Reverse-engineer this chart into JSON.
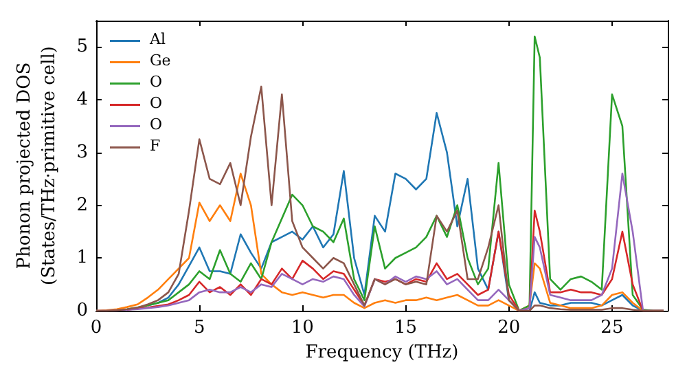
{
  "chart_data": {
    "type": "line",
    "xlabel": "Frequency (THz)",
    "ylabel": "Phonon projected DOS\n(States/THz·primitive cell)",
    "x": [
      0,
      0.5,
      1,
      1.5,
      2,
      2.5,
      3,
      3.5,
      4,
      4.5,
      5,
      5.5,
      6,
      6.5,
      7,
      7.5,
      8,
      8.5,
      9,
      9.5,
      10,
      10.5,
      11,
      11.5,
      12,
      12.5,
      13,
      13.5,
      14,
      14.5,
      15,
      15.5,
      16,
      16.5,
      17,
      17.5,
      18,
      18.5,
      19,
      19.5,
      20,
      20.5,
      21,
      21.25,
      21.5,
      22,
      22.5,
      23,
      23.5,
      24,
      24.5,
      25,
      25.5,
      26,
      26.5,
      27,
      27.5
    ],
    "series": [
      {
        "name": "Al",
        "color": "#1f77b4",
        "values": [
          null,
          null,
          null,
          null,
          null,
          0.1,
          0.15,
          0.25,
          0.5,
          0.85,
          1.2,
          0.75,
          0.75,
          0.7,
          1.45,
          1.1,
          0.8,
          1.3,
          1.4,
          1.5,
          1.35,
          1.6,
          1.2,
          1.45,
          2.65,
          1.0,
          0.3,
          1.8,
          1.5,
          2.6,
          2.5,
          2.3,
          2.5,
          3.75,
          3.0,
          1.6,
          2.5,
          0.8,
          0.4,
          1.5,
          0.2,
          0,
          0,
          0.35,
          0.15,
          0.1,
          0.1,
          0.15,
          0.15,
          0.15,
          0.1,
          0.2,
          0.3,
          0.1,
          0,
          0,
          0
        ]
      },
      {
        "name": "Ge",
        "color": "#ff7f0e",
        "values": [
          0,
          0.01,
          0.03,
          0.07,
          0.12,
          0.25,
          0.4,
          0.6,
          0.8,
          1.0,
          2.05,
          1.7,
          2.0,
          1.7,
          2.6,
          2.0,
          0.7,
          0.5,
          0.35,
          0.3,
          0.35,
          0.3,
          0.25,
          0.3,
          0.3,
          0.15,
          0.05,
          0.15,
          0.2,
          0.15,
          0.2,
          0.2,
          0.25,
          0.2,
          0.25,
          0.3,
          0.2,
          0.1,
          0.1,
          0.2,
          0.1,
          0,
          0.1,
          0.9,
          0.8,
          0.15,
          0.1,
          0.05,
          0.05,
          0.05,
          0.1,
          0.3,
          0.35,
          0.15,
          0,
          0,
          0
        ]
      },
      {
        "name": "O",
        "color": "#2ca02c",
        "values": [
          null,
          null,
          null,
          0.03,
          0.06,
          0.1,
          0.15,
          0.2,
          0.35,
          0.5,
          0.75,
          0.6,
          1.15,
          0.7,
          0.55,
          0.9,
          0.6,
          1.3,
          1.75,
          2.2,
          2.0,
          1.6,
          1.5,
          1.3,
          1.75,
          0.6,
          0.2,
          1.6,
          0.8,
          1.0,
          1.1,
          1.2,
          1.4,
          1.8,
          1.4,
          2.0,
          1.0,
          0.5,
          0.8,
          2.8,
          0.5,
          0,
          0.1,
          5.2,
          4.8,
          0.6,
          0.4,
          0.6,
          0.65,
          0.55,
          0.4,
          4.1,
          3.5,
          0.3,
          0.02,
          0,
          0
        ]
      },
      {
        "name": "O",
        "color": "#d62728",
        "values": [
          null,
          null,
          null,
          0.02,
          0.04,
          0.06,
          0.09,
          0.12,
          0.2,
          0.3,
          0.55,
          0.35,
          0.45,
          0.3,
          0.5,
          0.3,
          0.6,
          0.5,
          0.8,
          0.6,
          0.95,
          0.8,
          0.6,
          0.75,
          0.7,
          0.4,
          0.1,
          0.6,
          0.55,
          0.6,
          0.5,
          0.6,
          0.55,
          0.9,
          0.6,
          0.7,
          0.5,
          0.3,
          0.4,
          1.5,
          0.3,
          0,
          0.05,
          1.9,
          1.5,
          0.35,
          0.35,
          0.4,
          0.35,
          0.35,
          0.3,
          0.6,
          1.5,
          0.5,
          0,
          0,
          0
        ]
      },
      {
        "name": "O",
        "color": "#9467bd",
        "values": [
          0,
          0,
          0.01,
          0.02,
          0.03,
          0.05,
          0.07,
          0.1,
          0.15,
          0.2,
          0.35,
          0.4,
          0.35,
          0.35,
          0.45,
          0.35,
          0.5,
          0.45,
          0.7,
          0.6,
          0.5,
          0.6,
          0.55,
          0.65,
          0.6,
          0.3,
          0.08,
          0.6,
          0.5,
          0.65,
          0.55,
          0.65,
          0.6,
          0.75,
          0.5,
          0.6,
          0.4,
          0.2,
          0.2,
          0.4,
          0.2,
          0,
          0.05,
          1.4,
          1.2,
          0.3,
          0.25,
          0.2,
          0.2,
          0.2,
          0.3,
          0.8,
          2.6,
          1.5,
          0,
          0,
          0
        ]
      },
      {
        "name": "F",
        "color": "#8c564b",
        "values": [
          0,
          0,
          0.01,
          0.03,
          0.06,
          0.12,
          0.2,
          0.35,
          0.7,
          1.9,
          3.25,
          2.5,
          2.4,
          2.8,
          2.0,
          3.3,
          4.25,
          2.0,
          4.1,
          1.7,
          1.2,
          1.0,
          0.8,
          1.0,
          0.9,
          0.5,
          0.1,
          0.6,
          0.5,
          0.6,
          0.5,
          0.55,
          0.5,
          1.8,
          1.5,
          1.9,
          0.6,
          0.6,
          1.2,
          2.0,
          0.2,
          0,
          0,
          0.1,
          0.1,
          0.05,
          0.03,
          0.02,
          0.02,
          0.02,
          0.02,
          0.05,
          0.05,
          0.02,
          0,
          0,
          0
        ]
      }
    ],
    "xlim": [
      0,
      27.7
    ],
    "xticks": [
      0,
      5,
      10,
      15,
      20,
      25
    ],
    "ylim": [
      0,
      5.5
    ],
    "yticks": [
      0,
      1,
      2,
      3,
      4,
      5
    ],
    "legend": "top left",
    "grid": false,
    "marker": "none",
    "line_style": "solid"
  }
}
